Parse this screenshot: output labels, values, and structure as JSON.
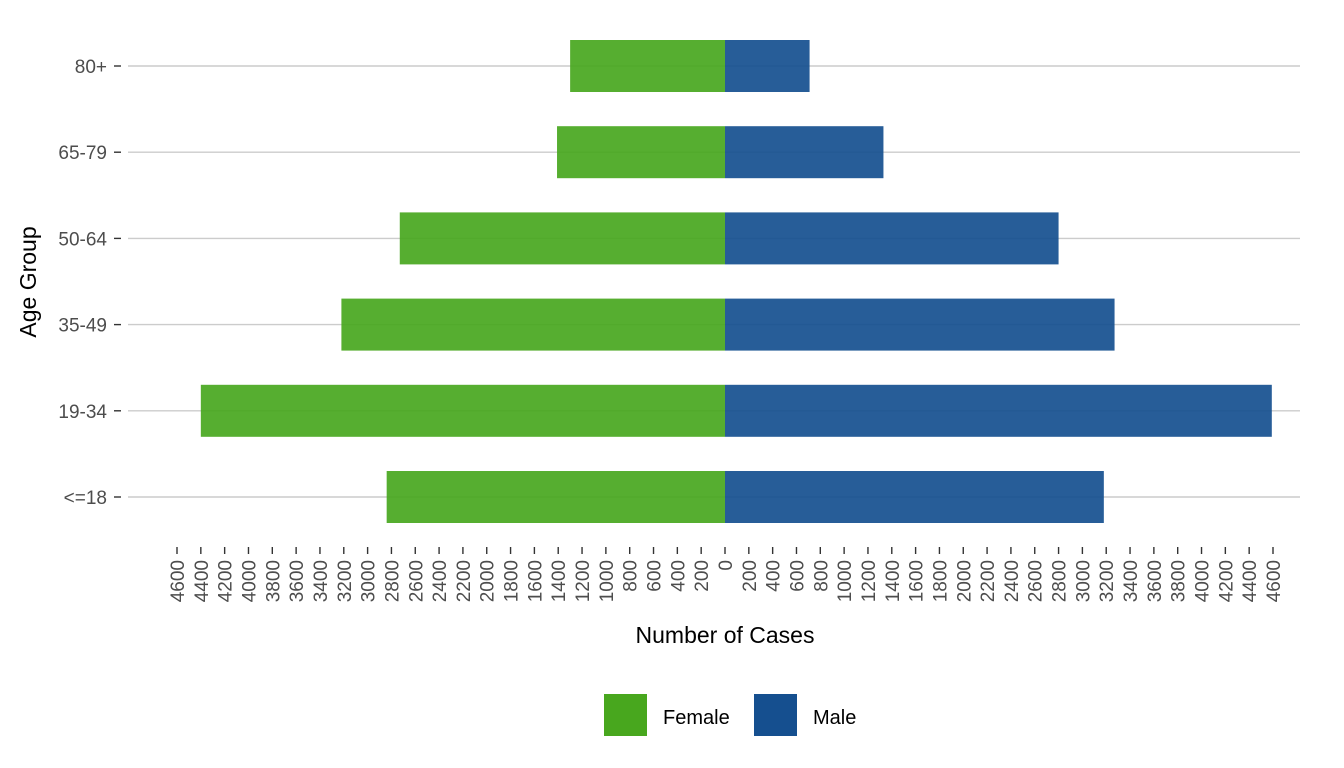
{
  "chart_data": {
    "type": "bar",
    "orientation": "horizontal",
    "layout": "population-pyramid",
    "xlabel": "Number of Cases",
    "ylabel": "Age Group",
    "categories": [
      "<=18",
      "19-34",
      "35-49",
      "50-64",
      "65-79",
      "80+"
    ],
    "series": [
      {
        "name": "Female",
        "color": "#48a71e",
        "values": [
          2840,
          4400,
          3220,
          2730,
          1410,
          1300
        ]
      },
      {
        "name": "Male",
        "color": "#154f8f",
        "values": [
          3180,
          4590,
          3270,
          2800,
          1330,
          710
        ]
      }
    ],
    "xlim": [
      -4600,
      4600
    ],
    "x_tick_step": 200,
    "x_tick_labels_absolute": true,
    "grid": {
      "horizontal": true,
      "vertical": false
    },
    "legend": {
      "position": "bottom",
      "entries": [
        "Female",
        "Male"
      ]
    }
  }
}
